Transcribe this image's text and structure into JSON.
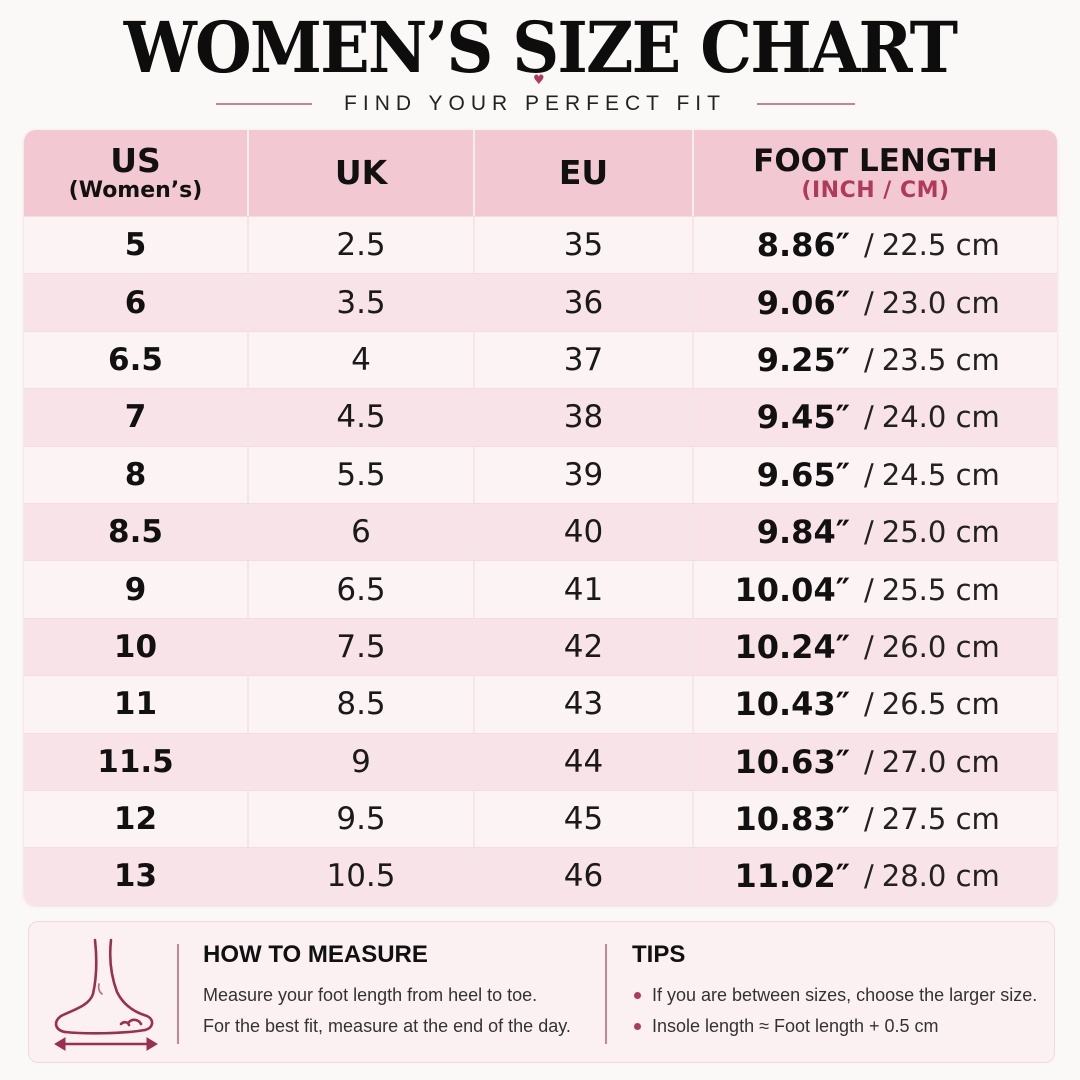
{
  "header": {
    "title": "WOMEN’S SIZE CHART",
    "subtitle": "FIND YOUR PERFECT FIT"
  },
  "table": {
    "columns": [
      {
        "main": "US",
        "sub": "(Women’s)"
      },
      {
        "main": "UK"
      },
      {
        "main": "EU"
      },
      {
        "main": "FOOT LENGTH",
        "sub": "(INCH / CM)"
      }
    ],
    "rows": [
      {
        "us": "5",
        "uk": "2.5",
        "eu": "35",
        "inch": "8.86″",
        "cm": "22.5 cm"
      },
      {
        "us": "6",
        "uk": "3.5",
        "eu": "36",
        "inch": "9.06″",
        "cm": "23.0 cm"
      },
      {
        "us": "6.5",
        "uk": "4",
        "eu": "37",
        "inch": "9.25″",
        "cm": "23.5 cm"
      },
      {
        "us": "7",
        "uk": "4.5",
        "eu": "38",
        "inch": "9.45″",
        "cm": "24.0 cm"
      },
      {
        "us": "8",
        "uk": "5.5",
        "eu": "39",
        "inch": "9.65″",
        "cm": "24.5 cm"
      },
      {
        "us": "8.5",
        "uk": "6",
        "eu": "40",
        "inch": "9.84″",
        "cm": "25.0 cm"
      },
      {
        "us": "9",
        "uk": "6.5",
        "eu": "41",
        "inch": "10.04″",
        "cm": "25.5 cm"
      },
      {
        "us": "10",
        "uk": "7.5",
        "eu": "42",
        "inch": "10.24″",
        "cm": "26.0 cm"
      },
      {
        "us": "11",
        "uk": "8.5",
        "eu": "43",
        "inch": "10.43″",
        "cm": "26.5 cm"
      },
      {
        "us": "11.5",
        "uk": "9",
        "eu": "44",
        "inch": "10.63″",
        "cm": "27.0 cm"
      },
      {
        "us": "12",
        "uk": "9.5",
        "eu": "45",
        "inch": "10.83″",
        "cm": "27.5 cm"
      },
      {
        "us": "13",
        "uk": "10.5",
        "eu": "46",
        "inch": "11.02″",
        "cm": "28.0 cm"
      }
    ]
  },
  "how_to_measure": {
    "title": "HOW TO MEASURE",
    "lines": [
      "Measure your foot length from heel to toe.",
      "For the best fit, measure at the end of the day."
    ],
    "icon": "foot-measure-icon"
  },
  "tips": {
    "title": "TIPS",
    "items": [
      "If you are between sizes, choose the larger size.",
      "Insole length ≈ Foot length + 0.5 cm"
    ]
  },
  "colors": {
    "accent": "#b03a5a",
    "header_bg": "#f2c9d2",
    "row_even": "#f8e3e8",
    "row_odd": "#fcf3f5"
  }
}
